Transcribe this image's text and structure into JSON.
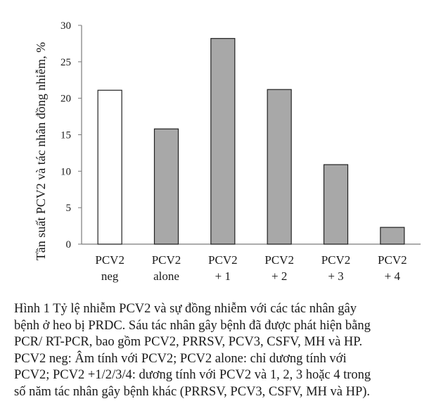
{
  "chart_data": {
    "type": "bar",
    "ylabel": "Tần suất PCV2 và tác nhân đồng nhiễm, %",
    "ylim": [
      0,
      30
    ],
    "yticks": [
      0,
      5,
      10,
      15,
      20,
      25,
      30
    ],
    "categories": [
      [
        "PCV2",
        "neg"
      ],
      [
        "PCV2",
        "alone"
      ],
      [
        "PCV2",
        "+ 1"
      ],
      [
        "PCV2",
        "+ 2"
      ],
      [
        "PCV2",
        "+ 3"
      ],
      [
        "PCV2",
        "+ 4"
      ]
    ],
    "values": [
      21.1,
      15.8,
      28.2,
      21.2,
      10.9,
      2.3
    ],
    "bar_fills": [
      "#ffffff",
      "#a8a8a8",
      "#a8a8a8",
      "#a8a8a8",
      "#a8a8a8",
      "#a8a8a8"
    ],
    "grid": false,
    "legend": "none"
  },
  "caption": {
    "lines": [
      "Hình 1 Tỷ lệ nhiễm PCV2 và sự đồng nhiễm với các tác nhân gây",
      "bệnh ở heo bị PRDC. Sáu tác nhân gây bệnh đã được phát hiện bằng",
      "PCR/ RT-PCR, bao gồm PCV2, PRRSV, PCV3, CSFV, MH và HP.",
      "PCV2 neg: Âm tính với PCV2; PCV2 alone: chỉ dương tính với",
      "PCV2; PCV2 +1/2/3/4: dương tính với PCV2 và 1, 2, 3 hoặc 4 trong",
      "số năm tác nhân gây bệnh khác (PRRSV, PCV3, CSFV, MH và HP)."
    ]
  }
}
